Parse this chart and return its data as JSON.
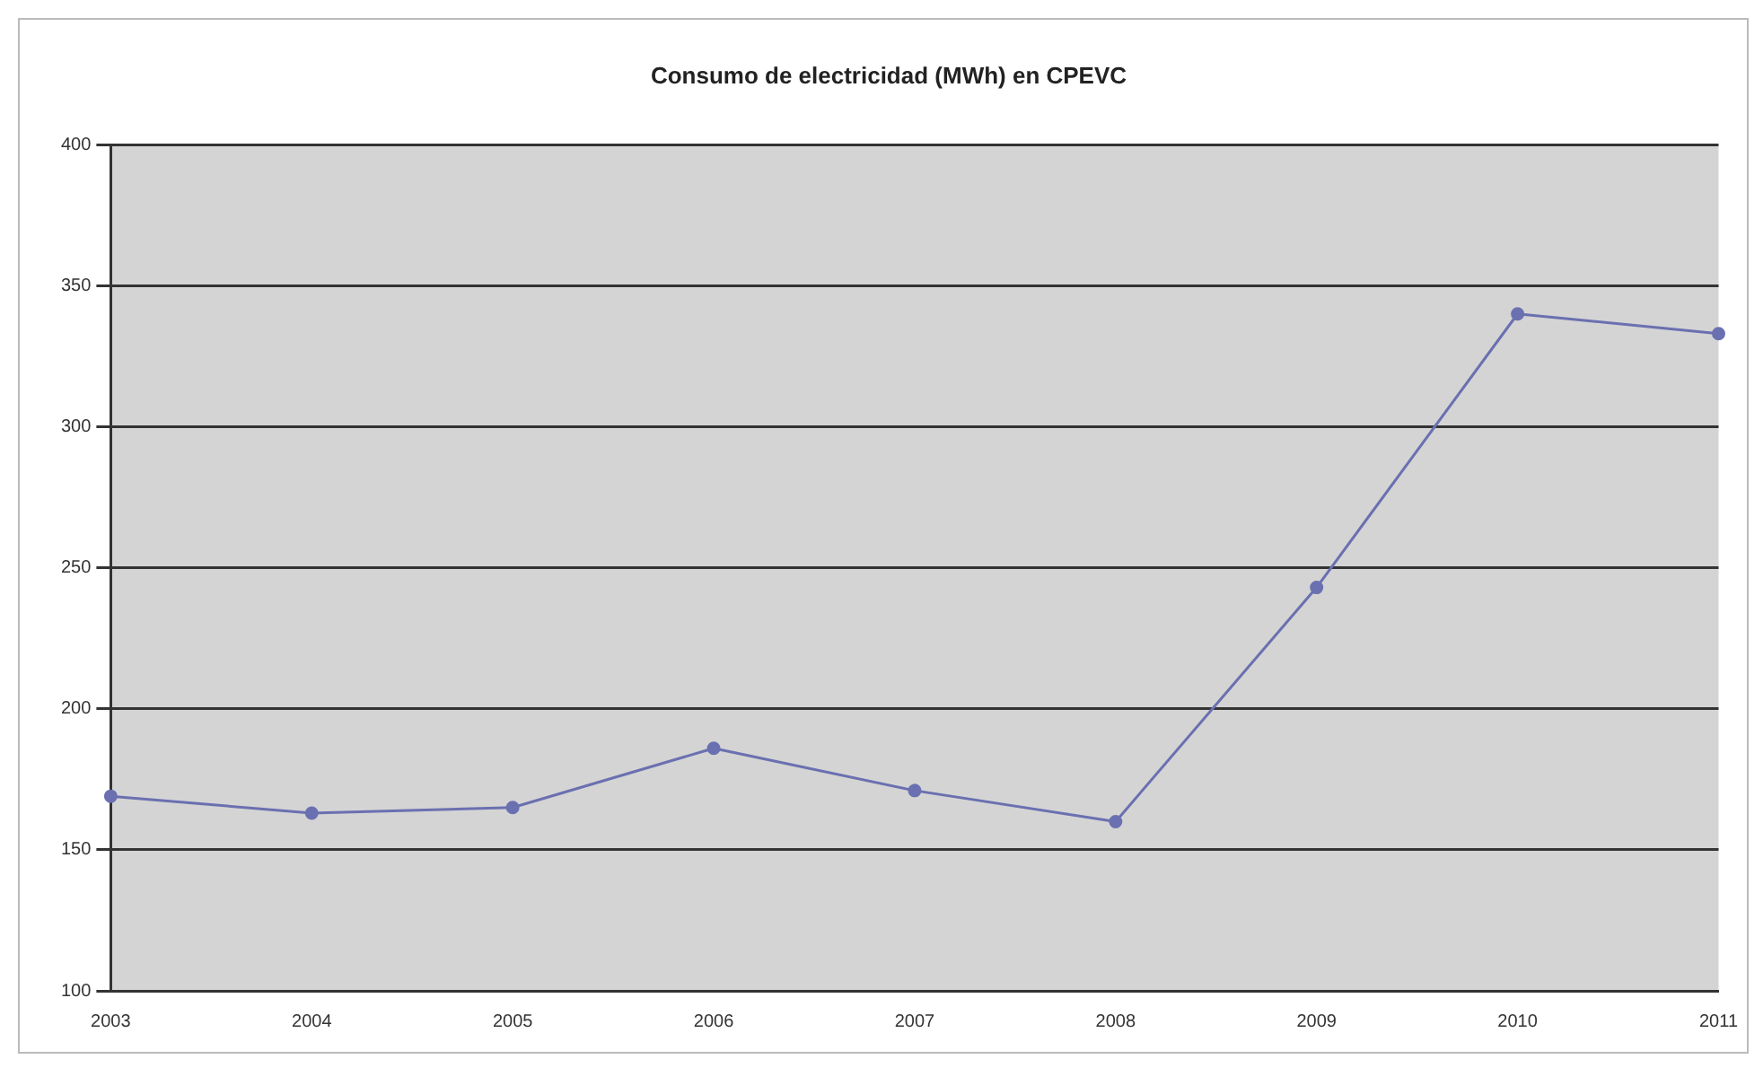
{
  "chart_data": {
    "type": "line",
    "title": "Consumo de electricidad (MWh) en CPEVC",
    "categories": [
      "2003",
      "2004",
      "2005",
      "2006",
      "2007",
      "2008",
      "2009",
      "2010",
      "2011"
    ],
    "series": [
      {
        "color": "#6a70b0",
        "values": [
          169,
          163,
          165,
          186,
          171,
          160,
          243,
          340,
          333
        ]
      }
    ],
    "ylim": [
      100,
      400
    ],
    "yticks": [
      100,
      150,
      200,
      250,
      300,
      350,
      400
    ],
    "grid": "y",
    "legend": false,
    "marker": "circle",
    "line_style": "solid"
  }
}
